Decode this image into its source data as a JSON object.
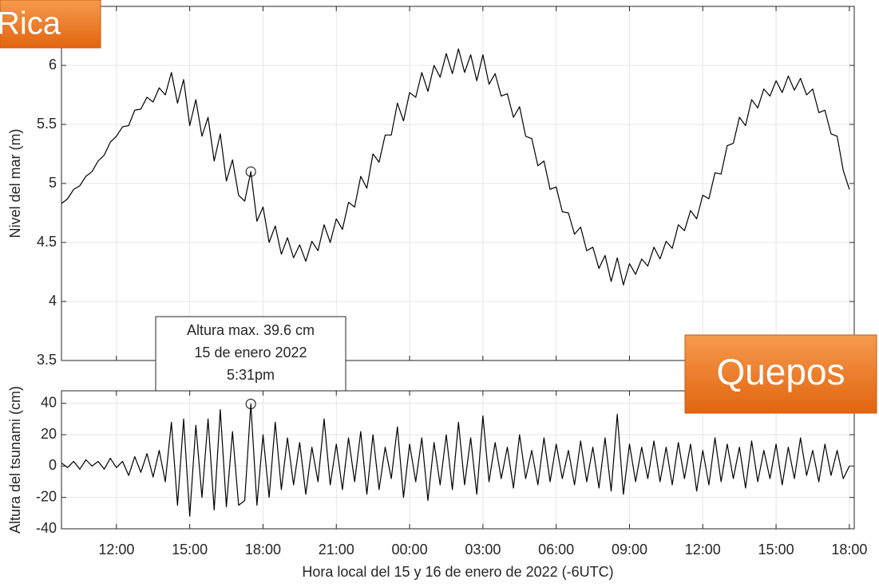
{
  "overlays": [
    "Rica",
    "Quepos"
  ],
  "annotation": {
    "lines": [
      "Altura max. 39.6 cm",
      "15 de enero 2022",
      "5:31pm"
    ],
    "index": 31
  },
  "chart_data": [
    {
      "type": "line",
      "ylabel": "Nivel del mar (m)",
      "x": [
        9.75,
        10,
        10.25,
        10.5,
        10.75,
        11,
        11.25,
        11.5,
        11.75,
        12,
        12.25,
        12.5,
        12.75,
        13,
        13.25,
        13.5,
        13.75,
        14,
        14.25,
        14.5,
        14.75,
        15,
        15.25,
        15.5,
        15.75,
        16,
        16.25,
        16.5,
        16.75,
        17,
        17.25,
        17.5,
        17.75,
        18,
        18.25,
        18.5,
        18.75,
        19,
        19.25,
        19.5,
        19.75,
        20,
        20.25,
        20.5,
        20.75,
        21,
        21.25,
        21.5,
        21.75,
        22,
        22.25,
        22.5,
        22.75,
        23,
        23.25,
        23.5,
        23.75,
        24,
        24.25,
        24.5,
        24.75,
        25,
        25.25,
        25.5,
        25.75,
        26,
        26.25,
        26.5,
        26.75,
        27,
        27.25,
        27.5,
        27.75,
        28,
        28.25,
        28.5,
        28.75,
        29,
        29.25,
        29.5,
        29.75,
        30,
        30.25,
        30.5,
        30.75,
        31,
        31.25,
        31.5,
        31.75,
        32,
        32.25,
        32.5,
        32.75,
        33,
        33.25,
        33.5,
        33.75,
        34,
        34.25,
        34.5,
        34.75,
        35,
        35.25,
        35.5,
        35.75,
        36,
        36.25,
        36.5,
        36.75,
        37,
        37.25,
        37.5,
        37.75,
        38,
        38.25,
        38.5,
        38.75,
        39,
        39.25,
        39.5,
        39.75,
        40,
        40.25,
        40.5,
        40.75,
        41,
        41.25,
        41.5,
        41.75,
        42
      ],
      "series": [
        {
          "color": "#000000",
          "values": [
            4.83,
            4.87,
            4.95,
            4.98,
            5.06,
            5.1,
            5.19,
            5.24,
            5.35,
            5.4,
            5.48,
            5.49,
            5.62,
            5.63,
            5.73,
            5.69,
            5.81,
            5.75,
            5.94,
            5.68,
            5.88,
            5.49,
            5.71,
            5.4,
            5.56,
            5.19,
            5.42,
            5.02,
            5.2,
            4.9,
            4.85,
            5.1,
            4.68,
            4.8,
            4.5,
            4.64,
            4.4,
            4.54,
            4.37,
            4.48,
            4.34,
            4.51,
            4.43,
            4.65,
            4.5,
            4.7,
            4.61,
            4.84,
            4.8,
            5.06,
            4.96,
            5.25,
            5.18,
            5.41,
            5.41,
            5.68,
            5.53,
            5.77,
            5.73,
            5.94,
            5.78,
            6.0,
            5.9,
            6.1,
            5.93,
            6.14,
            5.94,
            6.09,
            5.87,
            6.09,
            5.84,
            5.93,
            5.74,
            5.76,
            5.56,
            5.65,
            5.4,
            5.38,
            5.15,
            5.19,
            4.95,
            4.97,
            4.76,
            4.75,
            4.57,
            4.63,
            4.43,
            4.46,
            4.28,
            4.39,
            4.17,
            4.37,
            4.14,
            4.32,
            4.23,
            4.36,
            4.3,
            4.46,
            4.36,
            4.51,
            4.45,
            4.65,
            4.6,
            4.77,
            4.7,
            4.9,
            4.87,
            5.09,
            5.08,
            5.32,
            5.34,
            5.56,
            5.49,
            5.71,
            5.64,
            5.8,
            5.74,
            5.87,
            5.77,
            5.91,
            5.79,
            5.89,
            5.75,
            5.8,
            5.6,
            5.62,
            5.42,
            5.4,
            5.11,
            4.95
          ]
        }
      ],
      "xlim": [
        9.75,
        42.2
      ],
      "xticks": [
        12,
        15,
        18,
        21,
        24,
        27,
        30,
        33,
        36,
        39,
        42
      ],
      "ylim": [
        3.5,
        6.5
      ],
      "yticks": [
        3.5,
        4,
        4.5,
        5,
        5.5,
        6
      ],
      "grid": true
    },
    {
      "type": "line",
      "ylabel": "Altura del tsunami (cm)",
      "xlabel": "Hora local del 15 y 16 de enero de 2022 (-6UTC)",
      "x": [
        9.75,
        10,
        10.25,
        10.5,
        10.75,
        11,
        11.25,
        11.5,
        11.75,
        12,
        12.25,
        12.5,
        12.75,
        13,
        13.25,
        13.5,
        13.75,
        14,
        14.25,
        14.5,
        14.75,
        15,
        15.25,
        15.5,
        15.75,
        16,
        16.25,
        16.5,
        16.75,
        17,
        17.25,
        17.5,
        17.75,
        18,
        18.25,
        18.5,
        18.75,
        19,
        19.25,
        19.5,
        19.75,
        20,
        20.25,
        20.5,
        20.75,
        21,
        21.25,
        21.5,
        21.75,
        22,
        22.25,
        22.5,
        22.75,
        23,
        23.25,
        23.5,
        23.75,
        24,
        24.25,
        24.5,
        24.75,
        25,
        25.25,
        25.5,
        25.75,
        26,
        26.25,
        26.5,
        26.75,
        27,
        27.25,
        27.5,
        27.75,
        28,
        28.25,
        28.5,
        28.75,
        29,
        29.25,
        29.5,
        29.75,
        30,
        30.25,
        30.5,
        30.75,
        31,
        31.25,
        31.5,
        31.75,
        32,
        32.25,
        32.5,
        32.75,
        33,
        33.25,
        33.5,
        33.75,
        34,
        34.25,
        34.5,
        34.75,
        35,
        35.25,
        35.5,
        35.75,
        36,
        36.25,
        36.5,
        36.75,
        37,
        37.25,
        37.5,
        37.75,
        38,
        38.25,
        38.5,
        38.75,
        39,
        39.25,
        39.5,
        39.75,
        40,
        40.25,
        40.5,
        40.75,
        41,
        41.25,
        41.5,
        41.75,
        42
      ],
      "series": [
        {
          "color": "#000000",
          "values": [
            2,
            -1,
            3,
            -2,
            4,
            0,
            3,
            -2,
            5,
            -1,
            3,
            -6,
            6,
            -4,
            8,
            -7,
            10,
            -10,
            28,
            -25,
            30,
            -32,
            26,
            -20,
            30,
            -28,
            36,
            -26,
            22,
            -25,
            -22,
            39.6,
            -25,
            20,
            -20,
            28,
            -15,
            18,
            -12,
            15,
            -18,
            12,
            -10,
            30,
            -12,
            14,
            -15,
            18,
            -10,
            22,
            -18,
            20,
            -15,
            12,
            -8,
            25,
            -20,
            14,
            -10,
            18,
            -22,
            15,
            -12,
            20,
            -15,
            28,
            -12,
            18,
            -18,
            32,
            -10,
            15,
            -8,
            12,
            -14,
            20,
            -8,
            10,
            -12,
            18,
            -10,
            14,
            -8,
            10,
            -12,
            16,
            -10,
            12,
            -14,
            18,
            -16,
            33,
            -18,
            14,
            -10,
            12,
            -8,
            16,
            -10,
            12,
            -12,
            15,
            -8,
            14,
            -16,
            10,
            -12,
            18,
            -10,
            14,
            -8,
            12,
            -14,
            16,
            -10,
            10,
            -8,
            14,
            -12,
            12,
            -8,
            18,
            -6,
            10,
            -10,
            14,
            -6,
            10,
            -8,
            0
          ]
        }
      ],
      "xlim": [
        9.75,
        42.2
      ],
      "xticks": [
        {
          "value": 12,
          "label": "12:00"
        },
        {
          "value": 15,
          "label": "15:00"
        },
        {
          "value": 18,
          "label": "18:00"
        },
        {
          "value": 21,
          "label": "21:00"
        },
        {
          "value": 24,
          "label": "00:00"
        },
        {
          "value": 27,
          "label": "03:00"
        },
        {
          "value": 30,
          "label": "06:00"
        },
        {
          "value": 33,
          "label": "09:00"
        },
        {
          "value": 36,
          "label": "12:00"
        },
        {
          "value": 39,
          "label": "15:00"
        },
        {
          "value": 42,
          "label": "18:00"
        }
      ],
      "ylim": [
        -40,
        48
      ],
      "yticks": [
        40,
        20,
        0,
        -20,
        -40
      ],
      "grid": true
    }
  ]
}
